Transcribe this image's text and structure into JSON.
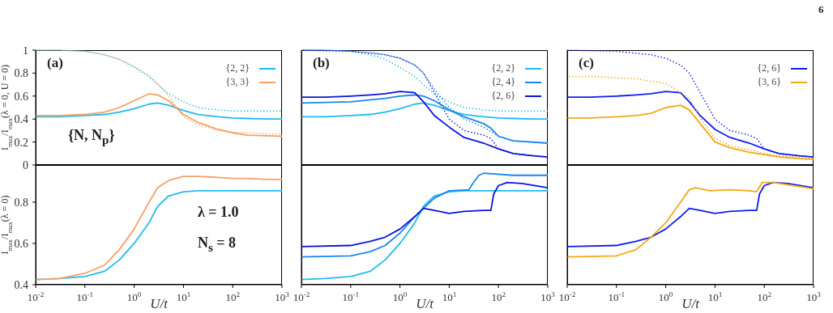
{
  "chart_data": [
    {
      "type": "line",
      "ylabel": "I$_{max}$/I$_{max}$(λ = 0, U = 0)",
      "annotations": [
        "(a)",
        "{N, N$_{p}$}"
      ],
      "legend": "top right",
      "tick_labels": "y",
      "xlim": [
        0.01,
        1000
      ],
      "ylim": [
        0,
        1
      ],
      "yticks": [
        0,
        0.2,
        0.4,
        0.6,
        0.8,
        1
      ],
      "log": "x",
      "x": [
        0.01,
        0.03,
        0.1,
        0.25,
        0.5,
        1,
        2,
        3,
        5,
        10,
        20,
        50,
        100,
        200,
        500,
        1000
      ],
      "series": [
        {
          "name": "{2, 2}",
          "color": "#1ebcf0",
          "values": [
            0.42,
            0.42,
            0.43,
            0.44,
            0.46,
            0.49,
            0.53,
            0.54,
            0.52,
            0.475,
            0.44,
            0.42,
            0.41,
            0.405,
            0.4,
            0.4
          ]
        },
        {
          "name": "{3, 3}",
          "color": "#f7a066",
          "values": [
            0.43,
            0.43,
            0.44,
            0.46,
            0.5,
            0.56,
            0.62,
            0.61,
            0.56,
            0.44,
            0.37,
            0.31,
            0.28,
            0.26,
            0.255,
            0.25
          ]
        },
        {
          "color": "#1ebcf0",
          "line_style": "dotted",
          "values": [
            1,
            1,
            0.99,
            0.96,
            0.92,
            0.85,
            0.77,
            0.7,
            0.62,
            0.55,
            0.5,
            0.48,
            0.47,
            0.47,
            0.47,
            0.47
          ]
        },
        {
          "color": "#f7a066",
          "line_style": "dotted",
          "values": [
            1,
            1,
            0.99,
            0.96,
            0.92,
            0.86,
            0.78,
            0.71,
            0.6,
            0.42,
            0.35,
            0.3,
            0.285,
            0.28,
            0.27,
            0.27
          ]
        }
      ]
    },
    {
      "type": "line",
      "annotations": [
        "(b)"
      ],
      "legend": "top right",
      "tick_labels": false,
      "xlim": [
        0.01,
        1000
      ],
      "ylim": [
        0,
        1
      ],
      "yticks": [
        0,
        0.2,
        0.4,
        0.6,
        0.8,
        1
      ],
      "log": "x",
      "x": [
        0.01,
        0.03,
        0.1,
        0.25,
        0.5,
        1,
        2,
        3,
        5,
        10,
        20,
        50,
        100,
        200,
        500,
        1000
      ],
      "series": [
        {
          "name": "{2, 2}",
          "color": "#1ebcf0",
          "values": [
            0.42,
            0.42,
            0.43,
            0.44,
            0.46,
            0.49,
            0.53,
            0.54,
            0.52,
            0.475,
            0.44,
            0.42,
            0.41,
            0.405,
            0.4,
            0.4
          ]
        },
        {
          "name": "{2, 4}",
          "color": "#1a85f0",
          "x": [
            0.01,
            0.1,
            0.5,
            1,
            2,
            3,
            5,
            10,
            20,
            50,
            70,
            100,
            200,
            1000
          ],
          "values": [
            0.54,
            0.55,
            0.58,
            0.6,
            0.61,
            0.6,
            0.56,
            0.48,
            0.42,
            0.36,
            0.32,
            0.25,
            0.21,
            0.19
          ]
        },
        {
          "name": "{2, 6}",
          "color": "#0a14d8",
          "values": [
            0.59,
            0.59,
            0.6,
            0.61,
            0.62,
            0.64,
            0.63,
            0.55,
            0.43,
            0.33,
            0.24,
            0.19,
            0.14,
            0.1,
            0.08,
            0.07
          ]
        },
        {
          "color": "#1ebcf0",
          "line_style": "dotted",
          "values": [
            1,
            1,
            0.99,
            0.96,
            0.92,
            0.85,
            0.77,
            0.7,
            0.62,
            0.55,
            0.5,
            0.48,
            0.47,
            0.47,
            0.47,
            0.47
          ]
        },
        {
          "color": "#1a85f0",
          "line_style": "dotted",
          "values": [
            1,
            1,
            0.99,
            0.98,
            0.96,
            0.93,
            0.87,
            0.8,
            0.66,
            0.5,
            0.4,
            0.33,
            0.25,
            0.21,
            0.2,
            0.19
          ]
        },
        {
          "color": "#0a14d8",
          "line_style": "dotted",
          "x": [
            0.01,
            0.1,
            0.5,
            1,
            2,
            3,
            5,
            10,
            20,
            50,
            70,
            100,
            200,
            1000
          ],
          "values": [
            1,
            0.99,
            0.96,
            0.93,
            0.87,
            0.8,
            0.63,
            0.4,
            0.3,
            0.26,
            0.23,
            0.14,
            0.1,
            0.07
          ]
        }
      ]
    },
    {
      "type": "line",
      "annotations": [
        "(c)",
        "6"
      ],
      "legend": "top right",
      "tick_labels": false,
      "xlim": [
        0.01,
        1000
      ],
      "ylim": [
        0,
        1
      ],
      "yticks": [
        0,
        0.2,
        0.4,
        0.6,
        0.8,
        1
      ],
      "log": "x",
      "x": [
        0.01,
        0.03,
        0.1,
        0.25,
        0.5,
        1,
        2,
        3,
        5,
        10,
        20,
        50,
        100,
        200,
        500,
        1000
      ],
      "series": [
        {
          "name": "{2, 6}",
          "color": "#0f1ef0",
          "values": [
            0.59,
            0.59,
            0.6,
            0.61,
            0.62,
            0.64,
            0.63,
            0.55,
            0.43,
            0.31,
            0.24,
            0.19,
            0.14,
            0.1,
            0.08,
            0.07
          ]
        },
        {
          "name": "{3, 6}",
          "color": "#f5a811",
          "values": [
            0.41,
            0.41,
            0.42,
            0.43,
            0.45,
            0.5,
            0.52,
            0.48,
            0.36,
            0.2,
            0.15,
            0.11,
            0.09,
            0.07,
            0.055,
            0.05
          ]
        },
        {
          "color": "#0f1ef0",
          "line_style": "dotted",
          "x": [
            0.01,
            0.1,
            0.5,
            1,
            2,
            3,
            5,
            10,
            20,
            50,
            70,
            100,
            200,
            1000
          ],
          "values": [
            1,
            0.99,
            0.96,
            0.93,
            0.87,
            0.8,
            0.63,
            0.4,
            0.3,
            0.26,
            0.23,
            0.14,
            0.1,
            0.07
          ]
        },
        {
          "color": "#f5a811",
          "line_style": "dotted",
          "values": [
            0.77,
            0.77,
            0.76,
            0.75,
            0.73,
            0.71,
            0.63,
            0.58,
            0.41,
            0.23,
            0.17,
            0.13,
            0.1,
            0.08,
            0.065,
            0.06
          ]
        }
      ]
    },
    {
      "type": "line",
      "ylabel": "I$_{max}$/I$_{max}$(λ = 0)",
      "xlabel": "U/t",
      "annotations": [
        "λ = 1.0",
        "N$_{s}$ = 8"
      ],
      "xlim": [
        0.01,
        1000
      ],
      "ylim": [
        0.4,
        0.98
      ],
      "yticks": [
        0.4,
        0.6,
        0.8
      ],
      "log": "x",
      "xticks": [
        {
          "value": 0.01,
          "label": "10$^{-2}$"
        },
        {
          "value": 0.1,
          "label": "10$^{-1}$"
        },
        {
          "value": 1,
          "label": "10$^{0}$"
        },
        {
          "value": 10,
          "label": "10$^{1}$"
        },
        {
          "value": 100,
          "label": "10$^{2}$"
        },
        {
          "value": 1000,
          "label": "10$^{3}$"
        }
      ],
      "x": [
        0.01,
        0.03,
        0.1,
        0.25,
        0.5,
        1,
        2,
        3,
        5,
        10,
        20,
        50,
        100,
        200,
        500,
        1000
      ],
      "series": [
        {
          "color": "#1ebcf0",
          "values": [
            0.425,
            0.43,
            0.44,
            0.465,
            0.52,
            0.6,
            0.7,
            0.78,
            0.83,
            0.85,
            0.855,
            0.855,
            0.855,
            0.855,
            0.855,
            0.855
          ]
        },
        {
          "color": "#f7a066",
          "values": [
            0.425,
            0.43,
            0.455,
            0.495,
            0.57,
            0.67,
            0.8,
            0.87,
            0.905,
            0.925,
            0.925,
            0.92,
            0.915,
            0.915,
            0.91,
            0.91
          ]
        }
      ]
    },
    {
      "type": "line",
      "xlabel": "U/t",
      "tick_labels": "x",
      "xlim": [
        0.01,
        1000
      ],
      "ylim": [
        0.4,
        0.98
      ],
      "yticks": [
        0.4,
        0.6,
        0.8
      ],
      "log": "x",
      "xticks": [
        {
          "value": 0.01,
          "label": "10$^{-2}$"
        },
        {
          "value": 0.1,
          "label": "10$^{-1}$"
        },
        {
          "value": 1,
          "label": "10$^{0}$"
        },
        {
          "value": 10,
          "label": "10$^{1}$"
        },
        {
          "value": 100,
          "label": "10$^{2}$"
        },
        {
          "value": 1000,
          "label": "10$^{3}$"
        }
      ],
      "x": [
        0.01,
        0.03,
        0.1,
        0.25,
        0.5,
        1,
        2,
        3,
        5,
        10,
        20,
        50,
        100,
        200,
        500,
        1000
      ],
      "series": [
        {
          "color": "#1ebcf0",
          "values": [
            0.425,
            0.43,
            0.44,
            0.465,
            0.52,
            0.6,
            0.7,
            0.78,
            0.83,
            0.85,
            0.855,
            0.855,
            0.855,
            0.855,
            0.855,
            0.855
          ]
        },
        {
          "color": "#1a85f0",
          "x": [
            0.01,
            0.1,
            0.25,
            0.5,
            1,
            2,
            3,
            5,
            10,
            25,
            30,
            40,
            50,
            200,
            1000
          ],
          "values": [
            0.535,
            0.54,
            0.56,
            0.59,
            0.65,
            0.73,
            0.77,
            0.82,
            0.855,
            0.86,
            0.89,
            0.93,
            0.94,
            0.93,
            0.93
          ]
        },
        {
          "color": "#0a14d8",
          "x": [
            0.01,
            0.1,
            0.25,
            0.5,
            1,
            2,
            3,
            5,
            10,
            20,
            50,
            70,
            80,
            100,
            150,
            300,
            1000
          ],
          "values": [
            0.585,
            0.59,
            0.61,
            0.63,
            0.67,
            0.73,
            0.77,
            0.76,
            0.745,
            0.755,
            0.76,
            0.76,
            0.84,
            0.88,
            0.895,
            0.89,
            0.87
          ]
        }
      ]
    },
    {
      "type": "line",
      "xlabel": "U/t",
      "tick_labels": "x",
      "xlim": [
        0.01,
        1000
      ],
      "ylim": [
        0.4,
        0.98
      ],
      "yticks": [
        0.4,
        0.6,
        0.8
      ],
      "log": "x",
      "xticks": [
        {
          "value": 0.01,
          "label": "10$^{-2}$"
        },
        {
          "value": 0.1,
          "label": "10$^{-1}$"
        },
        {
          "value": 1,
          "label": "10$^{0}$"
        },
        {
          "value": 10,
          "label": "10$^{1}$"
        },
        {
          "value": 100,
          "label": "10$^{2}$"
        },
        {
          "value": 1000,
          "label": "10$^{3}$"
        }
      ],
      "series": [
        {
          "color": "#0f1ef0",
          "x": [
            0.01,
            0.1,
            0.25,
            0.5,
            1,
            2,
            3,
            5,
            10,
            20,
            50,
            70,
            80,
            100,
            150,
            300,
            1000
          ],
          "values": [
            0.585,
            0.59,
            0.61,
            0.63,
            0.67,
            0.73,
            0.77,
            0.76,
            0.745,
            0.755,
            0.76,
            0.76,
            0.84,
            0.88,
            0.895,
            0.89,
            0.87
          ]
        },
        {
          "color": "#f5a811",
          "x": [
            0.01,
            0.1,
            0.25,
            0.5,
            1,
            2,
            3,
            4,
            8,
            20,
            50,
            70,
            90,
            150,
            1000
          ],
          "values": [
            0.535,
            0.54,
            0.57,
            0.63,
            0.7,
            0.8,
            0.86,
            0.87,
            0.855,
            0.86,
            0.855,
            0.85,
            0.895,
            0.895,
            0.865
          ]
        }
      ]
    }
  ]
}
